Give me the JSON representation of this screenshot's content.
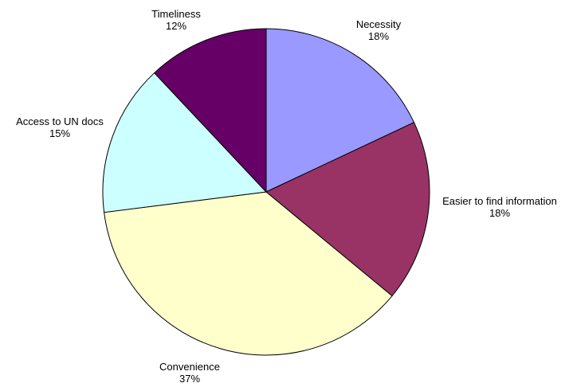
{
  "chart_data": {
    "type": "pie",
    "start_angle_deg": 0,
    "direction": "clockwise",
    "slices": [
      {
        "label": "Necessity",
        "value": 18,
        "value_label": "18%",
        "color": "#9999ff"
      },
      {
        "label": "Easier to find information",
        "value": 18,
        "value_label": "18%",
        "color": "#993366"
      },
      {
        "label": "Convenience",
        "value": 37,
        "value_label": "37%",
        "color": "#ffffcc"
      },
      {
        "label": "Access to UN docs",
        "value": 15,
        "value_label": "15%",
        "color": "#ccffff"
      },
      {
        "label": "Timeliness",
        "value": 12,
        "value_label": "12%",
        "color": "#660066"
      }
    ]
  }
}
